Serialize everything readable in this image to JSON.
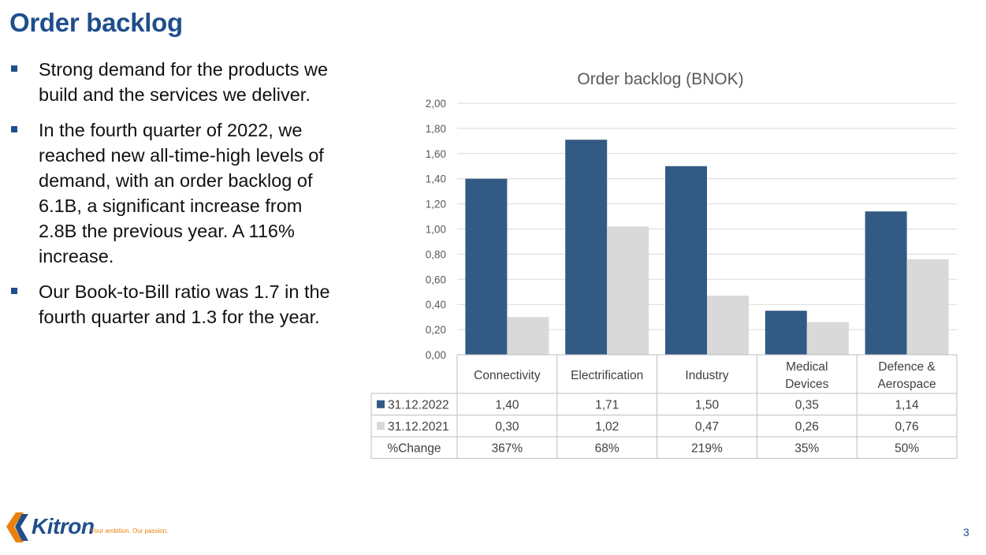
{
  "slide": {
    "title": "Order backlog",
    "bullets": [
      "Strong demand for the products we build and the services we deliver.",
      "In the fourth quarter of 2022, we reached new all-time-high levels of demand, with an order backlog of 6.1B, a significant increase from 2.8B the previous year. A 116% increase.",
      "Our Book-to-Bill ratio was 1.7 in the fourth quarter and 1.3 for the year."
    ],
    "page_number": "3"
  },
  "footer": {
    "logo_text": "Kitron",
    "tagline": "Your ambition. Our passion."
  },
  "colors": {
    "title": "#1f4e8c",
    "series_2022": "#335a84",
    "series_2021": "#d9d9d9"
  },
  "chart_data": {
    "type": "bar",
    "title": "Order backlog (BNOK)",
    "categories": [
      "Connectivity",
      "Electrification",
      "Industry",
      "Medical Devices",
      "Defence & Aerospace"
    ],
    "series": [
      {
        "name": "31.12.2022",
        "values": [
          1.4,
          1.71,
          1.5,
          0.35,
          1.14
        ],
        "labels": [
          "1,40",
          "1,71",
          "1,50",
          "0,35",
          "1,14"
        ]
      },
      {
        "name": "31.12.2021",
        "values": [
          0.3,
          1.02,
          0.47,
          0.26,
          0.76
        ],
        "labels": [
          "0,30",
          "1,02",
          "0,47",
          "0,26",
          "0,76"
        ]
      }
    ],
    "extra_row": {
      "name": "%Change",
      "values": [
        "367%",
        "68%",
        "219%",
        "35%",
        "50%"
      ]
    },
    "ylim": [
      0,
      2
    ],
    "yticks": [
      "0,00",
      "0,20",
      "0,40",
      "0,60",
      "0,80",
      "1,00",
      "1,20",
      "1,40",
      "1,60",
      "1,80",
      "2,00"
    ],
    "grid": true,
    "legend": "data-table"
  }
}
